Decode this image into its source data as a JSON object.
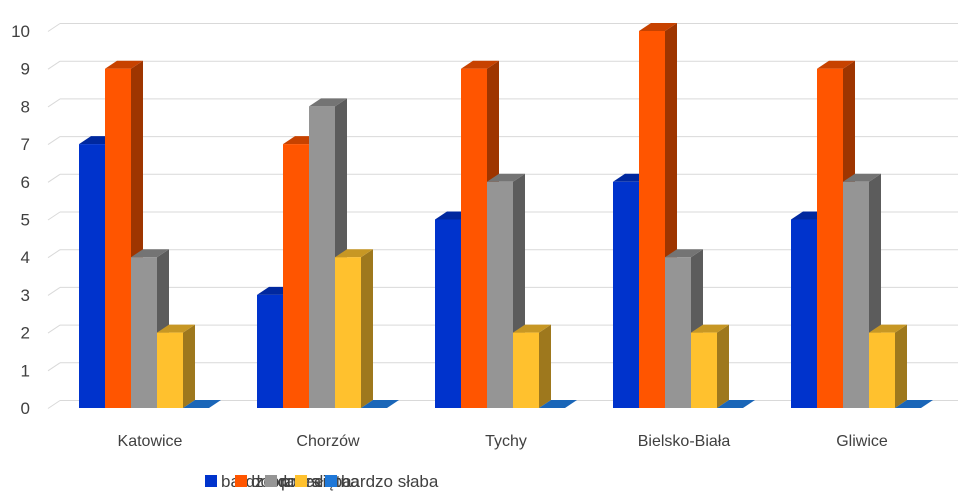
{
  "chart_data": {
    "type": "bar",
    "title": "",
    "xlabel": "",
    "ylabel": "",
    "categories": [
      "Katowice",
      "Chorzów",
      "Tychy",
      "Bielsko-Biała",
      "Gliwice"
    ],
    "ylim": [
      0,
      10
    ],
    "yticks": [
      "0",
      "1",
      "2",
      "3",
      "4",
      "5",
      "6",
      "7",
      "8",
      "9",
      "10"
    ],
    "grid": true,
    "legend_position": "bottom",
    "series": [
      {
        "name": "bardzo dobra",
        "color": "#0033CC",
        "values": [
          7,
          3,
          5,
          6,
          5
        ]
      },
      {
        "name": "dobra",
        "color": "#FF5500",
        "values": [
          9,
          7,
          9,
          10,
          9
        ]
      },
      {
        "name": "przeciętna",
        "color": "#959595",
        "values": [
          4,
          8,
          6,
          4,
          6
        ]
      },
      {
        "name": "słaba",
        "color": "#FFC12E",
        "values": [
          2,
          4,
          2,
          2,
          2
        ]
      },
      {
        "name": "bardzo słaba",
        "color": "#1F78D8",
        "values": [
          0,
          0,
          0,
          0,
          0
        ]
      }
    ]
  }
}
